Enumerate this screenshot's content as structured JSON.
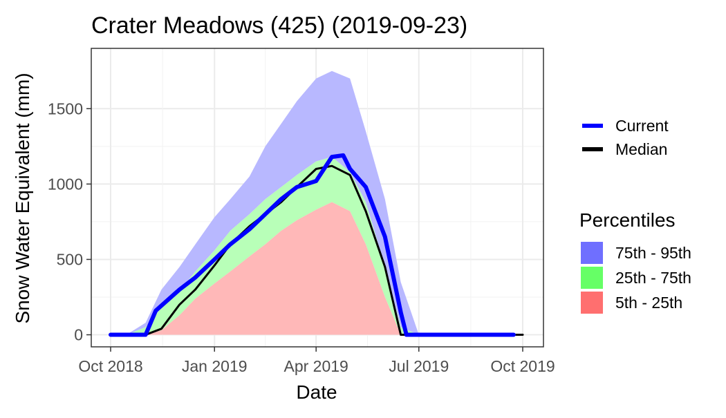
{
  "chart_data": {
    "type": "area",
    "title": "Crater Meadows (425) (2019-09-23)",
    "xlabel": "Date",
    "ylabel": "Snow Water Equivalent (mm)",
    "xlim": [
      "2018-10-01",
      "2019-10-01"
    ],
    "ylim": [
      -80,
      1900
    ],
    "grid": true,
    "legend_position": "right",
    "x_ticks": [
      {
        "date": "2018-10-01",
        "label": "Oct 2018"
      },
      {
        "date": "2019-01-01",
        "label": "Jan 2019"
      },
      {
        "date": "2019-04-01",
        "label": "Apr 2019"
      },
      {
        "date": "2019-07-01",
        "label": "Jul 2019"
      },
      {
        "date": "2019-10-01",
        "label": "Oct 2019"
      }
    ],
    "y_ticks": [
      {
        "value": 0,
        "label": "0"
      },
      {
        "value": 500,
        "label": "500"
      },
      {
        "value": 1000,
        "label": "1000"
      },
      {
        "value": 1500,
        "label": "1500"
      }
    ],
    "legend_lines_title": "",
    "legend_lines": [
      {
        "label": "Current",
        "color": "#0000ff"
      },
      {
        "label": "Median",
        "color": "#000000"
      }
    ],
    "legend_bands_title": "Percentiles",
    "legend_bands": [
      {
        "label": "75th - 95th",
        "color": "#6f6fff"
      },
      {
        "label": "25th - 75th",
        "color": "#66ff66"
      },
      {
        "label": "5th - 25th",
        "color": "#ff6f6f"
      }
    ],
    "band_fills": {
      "p75_p95": "#b8b8ff",
      "p25_p75": "#b8ffb8",
      "p05_p25": "#ffb8b8"
    },
    "percentiles": {
      "dates": [
        "2018-10-01",
        "2018-10-15",
        "2018-11-01",
        "2018-11-15",
        "2018-12-01",
        "2018-12-15",
        "2019-01-01",
        "2019-01-15",
        "2019-02-01",
        "2019-02-15",
        "2019-03-01",
        "2019-03-15",
        "2019-04-01",
        "2019-04-15",
        "2019-05-01",
        "2019-05-15",
        "2019-06-01",
        "2019-06-15",
        "2019-07-01",
        "2019-07-15",
        "2019-08-01",
        "2019-09-01",
        "2019-09-23",
        "2019-10-01"
      ],
      "p05": [
        0,
        0,
        0,
        0,
        0,
        0,
        0,
        0,
        0,
        0,
        0,
        0,
        0,
        0,
        0,
        0,
        0,
        0,
        0,
        0,
        0,
        0,
        0,
        0
      ],
      "p25": [
        0,
        0,
        0,
        30,
        130,
        240,
        340,
        420,
        520,
        600,
        690,
        760,
        830,
        880,
        820,
        600,
        250,
        0,
        0,
        0,
        0,
        0,
        0,
        0
      ],
      "p75": [
        0,
        0,
        50,
        180,
        290,
        420,
        560,
        690,
        800,
        900,
        980,
        1060,
        1150,
        1180,
        1080,
        880,
        450,
        50,
        0,
        0,
        0,
        0,
        0,
        0
      ],
      "p95": [
        0,
        0,
        80,
        300,
        450,
        600,
        780,
        900,
        1050,
        1250,
        1400,
        1550,
        1700,
        1750,
        1700,
        1350,
        900,
        350,
        0,
        0,
        0,
        0,
        0,
        0
      ]
    },
    "series": [
      {
        "name": "Median",
        "color": "#000000",
        "dates": [
          "2018-10-01",
          "2018-11-01",
          "2018-11-15",
          "2018-12-01",
          "2018-12-15",
          "2019-01-01",
          "2019-01-15",
          "2019-02-01",
          "2019-02-15",
          "2019-03-01",
          "2019-03-15",
          "2019-04-01",
          "2019-04-15",
          "2019-05-01",
          "2019-05-15",
          "2019-06-01",
          "2019-06-15",
          "2019-07-01",
          "2019-10-01"
        ],
        "values": [
          0,
          0,
          40,
          200,
          300,
          460,
          600,
          720,
          800,
          880,
          980,
          1100,
          1120,
          1060,
          820,
          450,
          0,
          0,
          0
        ]
      },
      {
        "name": "Current",
        "color": "#0000ff",
        "dates": [
          "2018-10-01",
          "2018-11-01",
          "2018-11-10",
          "2018-12-01",
          "2018-12-15",
          "2019-01-01",
          "2019-01-15",
          "2019-02-01",
          "2019-02-15",
          "2019-03-01",
          "2019-03-15",
          "2019-04-01",
          "2019-04-15",
          "2019-04-25",
          "2019-05-01",
          "2019-05-15",
          "2019-06-01",
          "2019-06-15",
          "2019-06-20",
          "2019-07-01",
          "2019-09-23"
        ],
        "values": [
          0,
          0,
          160,
          300,
          380,
          500,
          600,
          700,
          800,
          900,
          980,
          1020,
          1180,
          1190,
          1100,
          980,
          650,
          150,
          0,
          0,
          0
        ]
      }
    ]
  }
}
